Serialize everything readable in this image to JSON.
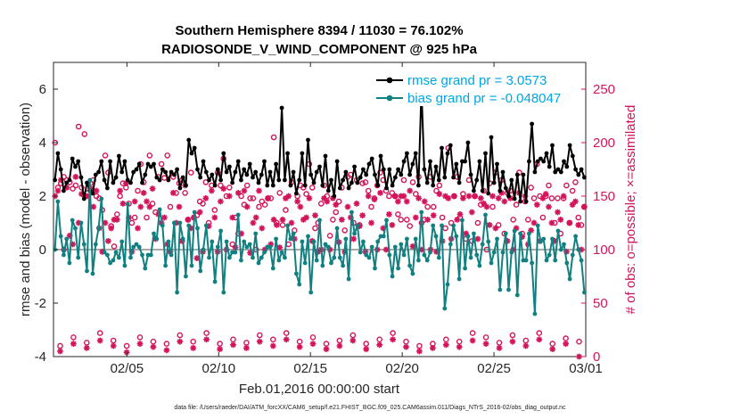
{
  "chart_data": {
    "type": "line",
    "title_line1": "Southern Hemisphere 8394 / 11030 = 76.102%",
    "title_line2": "RADIOSONDE_V_WIND_COMPONENT @ 925 hPa",
    "xlabel": "Feb.01,2016 00:00:00 start",
    "ylabel": "rmse and bias (model - observation)",
    "ylabel_right": "# of obs: o=possible; ×=assimilated",
    "x_range": [
      1,
      30
    ],
    "ylim": [
      -4,
      7
    ],
    "ylim_right": [
      0,
      275
    ],
    "x_ticks": [
      {
        "x": 5,
        "label": "02/05"
      },
      {
        "x": 10,
        "label": "02/10"
      },
      {
        "x": 15,
        "label": "02/15"
      },
      {
        "x": 20,
        "label": "02/20"
      },
      {
        "x": 25,
        "label": "02/25"
      },
      {
        "x": 30,
        "label": "03/01"
      }
    ],
    "y_ticks": [
      {
        "v": -4,
        "label": "-4"
      },
      {
        "v": -2,
        "label": "-2"
      },
      {
        "v": 0,
        "label": "0"
      },
      {
        "v": 2,
        "label": "2"
      },
      {
        "v": 4,
        "label": "4"
      },
      {
        "v": 6,
        "label": "6"
      }
    ],
    "y_ticks_right": [
      {
        "v": 0,
        "label": "0"
      },
      {
        "v": 50,
        "label": "50"
      },
      {
        "v": 100,
        "label": "100"
      },
      {
        "v": 150,
        "label": "150"
      },
      {
        "v": 200,
        "label": "200"
      },
      {
        "v": 250,
        "label": "250"
      }
    ],
    "zero_line": 0,
    "colors": {
      "rmse": "#000000",
      "bias": "#108080",
      "obs": "#d4145a",
      "legend_text": "#00a6e6",
      "zero_line": "#aaaaaa"
    },
    "series": [
      {
        "name": "rmse grand pr = 3.0573",
        "axis": "left",
        "values": [
          2.6,
          3.6,
          3.0,
          2.2,
          2.5,
          2.6,
          3.4,
          3.1,
          3.3,
          2.7,
          1.9,
          2.5,
          2.2,
          2.1,
          2.8,
          2.9,
          3.3,
          2.6,
          2.3,
          3.3,
          2.5,
          2.7,
          3.5,
          2.9,
          3.3,
          2.6,
          2.5,
          2.9,
          3.0,
          3.2,
          2.5,
          2.8,
          3.2,
          3.1,
          3.2,
          2.7,
          2.6,
          3.0,
          2.9,
          2.6,
          2.9,
          2.8,
          3.0,
          2.3,
          2.7,
          2.4,
          4.1,
          3.6,
          3.8,
          3.0,
          2.7,
          3.3,
          2.9,
          2.6,
          2.8,
          2.4,
          3.0,
          2.6,
          3.6,
          2.9,
          3.1,
          2.5,
          2.9,
          3.3,
          2.6,
          3.0,
          2.8,
          3.2,
          2.7,
          2.9,
          2.5,
          2.8,
          3.3,
          2.4,
          2.9,
          2.4,
          3.2,
          2.6,
          5.3,
          2.6,
          3.6,
          2.4,
          2.9,
          2.1,
          2.6,
          3.6,
          2.4,
          4.1,
          2.8,
          2.5,
          2.9,
          3.1,
          2.4,
          3.5,
          2.2,
          2.6,
          2.0,
          3.3,
          2.3,
          2.6,
          2.9,
          2.3,
          2.5,
          3.1,
          2.5,
          2.7,
          3.0,
          2.8,
          3.2,
          3.4,
          2.8,
          2.4,
          3.5,
          3.0,
          2.3,
          3.0,
          2.4,
          2.7,
          3.0,
          2.8,
          3.3,
          3.6,
          2.8,
          3.2,
          3.6,
          2.4,
          6.0,
          3.0,
          2.5,
          3.3,
          2.4,
          3.1,
          2.6,
          3.8,
          2.7,
          3.6,
          3.9,
          2.7,
          3.2,
          2.5,
          3.3,
          3.3,
          4.0,
          2.8,
          2.2,
          2.6,
          3.3,
          2.2,
          3.6,
          2.1,
          4.2,
          2.5,
          3.2,
          2.2,
          2.9,
          2.3,
          2.0,
          2.6,
          1.9,
          2.8,
          1.8,
          2.8,
          1.8,
          3.3,
          4.7,
          2.9,
          3.3,
          3.4,
          3.3,
          3.6,
          3.1,
          3.9,
          2.9,
          3.0,
          2.9,
          3.3,
          3.1,
          3.9,
          3.5,
          3.0,
          2.8,
          3.0,
          2.7
        ]
      },
      {
        "name": "bias grand pr = -0.048047",
        "axis": "left",
        "values": [
          0.0,
          1.8,
          0.5,
          -0.2,
          0.4,
          -0.5,
          1.1,
          0.8,
          -0.3,
          1.0,
          0.2,
          -0.8,
          2.6,
          -0.9,
          0.2,
          0.8,
          1.9,
          -0.1,
          -0.2,
          -0.5,
          -0.4,
          -0.1,
          -0.3,
          0.3,
          -0.6,
          1.7,
          -0.3,
          0.1,
          0.2,
          0.1,
          -0.2,
          -0.7,
          -0.2,
          -0.2,
          0.6,
          0.4,
          1.5,
          0.9,
          -0.6,
          0.3,
          -0.2,
          1.0,
          -1.6,
          1.0,
          0.4,
          -1.0,
          0.9,
          -0.6,
          1.4,
          0.8,
          -0.8,
          0.0,
          0.9,
          -0.3,
          0.3,
          -1.2,
          0.1,
          0.7,
          -1.6,
          0.3,
          -0.3,
          -0.1,
          -0.1,
          1.3,
          -0.4,
          0.3,
          0.1,
          0.2,
          -0.3,
          0.6,
          -0.5,
          -0.3,
          -0.1,
          0.1,
          0.1,
          -0.7,
          0.4,
          -0.4,
          -0.1,
          -0.3,
          0.9,
          0.4,
          0.6,
          -0.9,
          -1.3,
          0.3,
          -0.5,
          0.5,
          -1.6,
          0.3,
          -0.4,
          1.1,
          -0.6,
          0.2,
          0.1,
          -0.5,
          -0.3,
          0.8,
          -0.3,
          -0.6,
          0.4,
          -1.1,
          1.4,
          0.6,
          0.9,
          -0.1,
          0.3,
          -0.2,
          -0.3,
          0.1,
          -0.7,
          0.3,
          0.5,
          0.5,
          1.1,
          -0.2,
          -1.0,
          0.1,
          -0.7,
          0.2,
          -0.2,
          0.4,
          -0.6,
          -0.9,
          0.4,
          -0.4,
          1.4,
          -0.2,
          -0.4,
          -0.1,
          0.9,
          0.5,
          -0.3,
          0.9,
          -2.2,
          -1.3,
          0.2,
          0.9,
          0.5,
          -1.1,
          1.1,
          -0.7,
          0.5,
          -0.3,
          0.6,
          -0.2,
          -0.6,
          0.2,
          1.3,
          0.3,
          -0.5,
          -0.1,
          0.4,
          -1.5,
          -0.1,
          0.6,
          -1.5,
          -0.1,
          0.7,
          -1.7,
          0.6,
          -0.4,
          -0.4,
          0.6,
          -0.5,
          -2.4,
          0.9,
          0.3,
          0.4,
          -0.4,
          -0.2,
          0.4,
          -0.4,
          0.7,
          0.0,
          0.2,
          -0.5,
          -1.1,
          -0.2,
          0.5,
          0.0,
          -0.4,
          -1.6
        ]
      }
    ],
    "obs_possible": [
      200,
      158,
      162,
      168,
      165,
      163,
      157,
      160,
      215,
      158,
      208,
      153,
      162,
      165,
      150,
      148,
      137,
      188,
      172,
      122,
      103,
      133,
      150,
      162,
      158,
      143,
      125,
      130,
      155,
      180,
      163,
      130,
      188,
      143,
      135,
      168,
      180,
      167,
      188,
      140,
      168,
      153,
      162,
      165,
      153,
      128,
      172,
      130,
      132,
      145,
      143,
      163,
      125,
      160,
      137,
      172,
      160,
      185,
      150,
      158,
      105,
      130,
      115,
      150,
      142,
      160,
      148,
      148,
      100,
      140,
      145,
      142,
      148,
      148,
      205,
      125,
      153,
      123,
      137,
      105,
      163,
      118,
      150,
      160,
      158,
      152,
      180,
      158,
      120,
      125,
      143,
      160,
      150,
      113,
      128,
      135,
      145,
      158,
      118,
      168,
      170,
      125,
      165,
      123,
      162,
      163,
      155,
      140,
      148,
      160,
      172,
      165,
      155,
      150,
      153,
      150,
      133,
      128,
      165,
      128,
      122,
      163,
      152,
      168,
      125,
      128,
      140,
      168,
      140,
      155,
      160,
      130,
      120,
      195,
      125,
      150,
      168,
      130,
      152,
      110,
      165,
      108,
      150,
      125,
      142,
      155,
      100,
      162,
      140,
      172,
      123,
      165,
      115,
      153,
      155,
      128,
      142,
      172,
      115,
      145,
      128,
      158,
      148,
      180,
      150,
      130,
      150,
      160,
      148,
      125,
      148,
      115,
      148,
      160,
      125,
      155,
      163,
      130,
      123,
      140
    ],
    "obs_assimilated": [
      150,
      155,
      165,
      100,
      158,
      113,
      105,
      168,
      125,
      152,
      150,
      150,
      157,
      140,
      155,
      120,
      98,
      125,
      108,
      120,
      128,
      128,
      155,
      143,
      162,
      130,
      98,
      145,
      120,
      140,
      153,
      145,
      140,
      157,
      110,
      133,
      125,
      130,
      105,
      98,
      153,
      125,
      140,
      108,
      160,
      128,
      120,
      130,
      92,
      135,
      98,
      148,
      122,
      155,
      130,
      98,
      145,
      157,
      100,
      150,
      130,
      102,
      153,
      115,
      155,
      140,
      97,
      125,
      130,
      155,
      120,
      100,
      148,
      105,
      128,
      123,
      102,
      128,
      148,
      150,
      125,
      110,
      145,
      140,
      128,
      130,
      148,
      108,
      132,
      98,
      100,
      148,
      145,
      100,
      148,
      142,
      107,
      128,
      98,
      140,
      130,
      110,
      143,
      122,
      132,
      98,
      150,
      125,
      147,
      100,
      153,
      120,
      100,
      133,
      123,
      150,
      145,
      150,
      150,
      145,
      155,
      103,
      130,
      148,
      100,
      145,
      128,
      100,
      132,
      98,
      152,
      108,
      150,
      148,
      110,
      150,
      128,
      133,
      148,
      115,
      150,
      135,
      150,
      110,
      148,
      143,
      140,
      123,
      150,
      120,
      148,
      153,
      145,
      108,
      148,
      100,
      120,
      153,
      112,
      150,
      105,
      118,
      125,
      142,
      108,
      148,
      152,
      140,
      125,
      108,
      135,
      128,
      150,
      98,
      125,
      142,
      145,
      123,
      100,
      140
    ],
    "obs_possible_low": [
      10,
      18,
      13,
      22,
      15,
      10,
      18,
      14,
      12,
      20,
      14,
      22,
      12,
      16,
      13,
      20,
      16,
      22,
      14,
      18,
      12,
      15,
      20,
      12,
      16,
      22,
      14,
      10,
      12,
      16,
      14,
      22,
      18,
      13,
      20,
      15,
      22,
      12,
      17,
      14
    ],
    "obs_assimilated_low": [
      5,
      12,
      8,
      15,
      10,
      4,
      12,
      9,
      6,
      14,
      8,
      16,
      7,
      11,
      8,
      14,
      10,
      16,
      9,
      12,
      7,
      10,
      15,
      7,
      11,
      16,
      9,
      5,
      8,
      11,
      9,
      15,
      12,
      8,
      14,
      10,
      16,
      7,
      12,
      0
    ],
    "footer": "data file: /Users/raeder/DAI/ATM_forcXX/CAM6_setup/f.e21.FHIST_BGC.f09_025.CAM6assim.011/Diags_NTrS_2016-02/obs_diag_output.nc"
  }
}
